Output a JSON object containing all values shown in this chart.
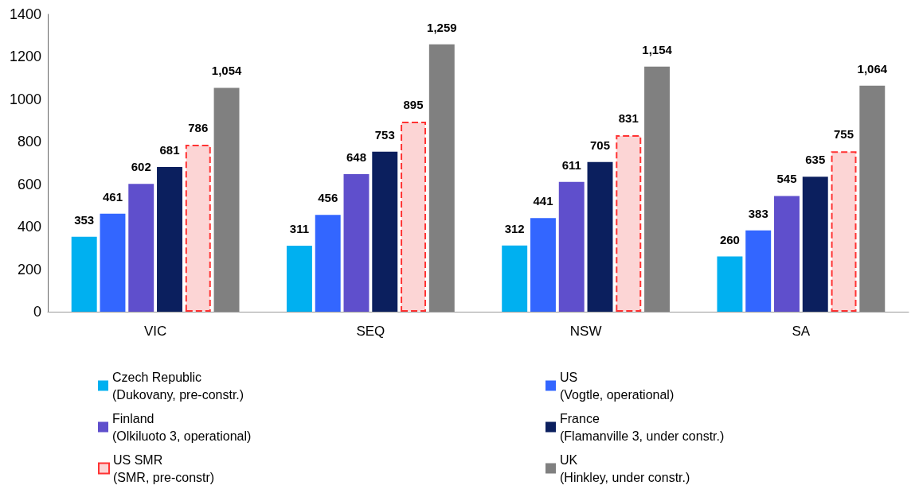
{
  "chart_data": {
    "type": "bar",
    "categories": [
      "VIC",
      "SEQ",
      "NSW",
      "SA"
    ],
    "series": [
      {
        "name": "Czech Republic\n(Dukovany, pre-constr.)",
        "color": "#00b0f0",
        "values": [
          353,
          311,
          312,
          260
        ],
        "value_labels": [
          "353",
          "311",
          "312",
          "260"
        ]
      },
      {
        "name": "US\n(Vogtle, operational)",
        "color": "#3366ff",
        "values": [
          461,
          456,
          441,
          383
        ],
        "value_labels": [
          "461",
          "456",
          "441",
          "383"
        ]
      },
      {
        "name": "Finland\n(Olkiluoto 3, operational)",
        "color": "#5f4fcc",
        "values": [
          602,
          648,
          611,
          545
        ],
        "value_labels": [
          "602",
          "648",
          "611",
          "545"
        ]
      },
      {
        "name": "France\n(Flamanville 3, under constr.)",
        "color": "#0b1f5e",
        "values": [
          681,
          753,
          705,
          635
        ],
        "value_labels": [
          "681",
          "753",
          "705",
          "635"
        ]
      },
      {
        "name": "US SMR\n(SMR, pre-constr)",
        "color": "#fcd5d5",
        "line_style": "dashed",
        "values": [
          786,
          895,
          831,
          755
        ],
        "value_labels": [
          "786",
          "895",
          "831",
          "755"
        ]
      },
      {
        "name": "UK\n(Hinkley, under constr.)",
        "color": "#808080",
        "values": [
          1054,
          1259,
          1154,
          1064
        ],
        "value_labels": [
          "1,054",
          "1,259",
          "1,154",
          "1,064"
        ]
      }
    ],
    "ylim": [
      0,
      1400
    ],
    "yticks": [
      0,
      200,
      400,
      600,
      800,
      1000,
      1200,
      1400
    ],
    "grid": false,
    "legend": "bottom"
  }
}
